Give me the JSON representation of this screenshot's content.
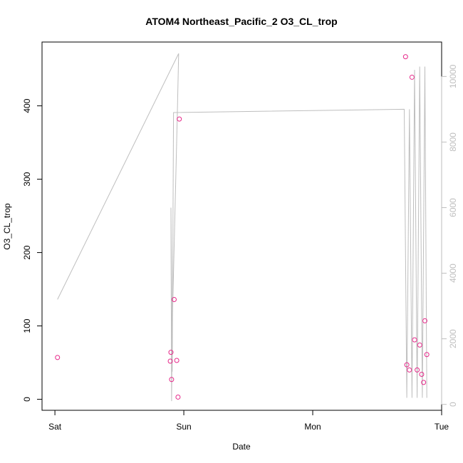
{
  "chart_data": {
    "type": "scatter",
    "title": "ATOM4 Northeast_Pacific_2 O3_CL_trop",
    "xlabel": "Date",
    "ylabel": "O3_CL_trop",
    "x_ticks": [
      {
        "label": "Sat",
        "value": 0
      },
      {
        "label": "Sun",
        "value": 1
      },
      {
        "label": "Mon",
        "value": 2
      },
      {
        "label": "Tue",
        "value": 3
      }
    ],
    "y_ticks": [
      0,
      100,
      200,
      300,
      400
    ],
    "y_right_ticks": [
      0,
      2000,
      4000,
      6000,
      8000,
      10000
    ],
    "xlim": [
      -0.1,
      3.0
    ],
    "ylim": [
      -15,
      487
    ],
    "y_right_lim": [
      -180,
      11050
    ],
    "series": [
      {
        "kind": "points",
        "axis": "left",
        "color": "#e7298a",
        "x": [
          0.02,
          0.895,
          0.9,
          0.905,
          0.925,
          0.945,
          0.955,
          0.965,
          2.72,
          2.73,
          2.75,
          2.77,
          2.79,
          2.81,
          2.83,
          2.845,
          2.86,
          2.87,
          2.885
        ],
        "y": [
          57,
          52,
          64,
          27,
          136,
          53,
          3,
          382,
          467,
          47,
          40,
          439,
          81,
          40,
          74,
          34,
          23,
          107,
          61
        ]
      },
      {
        "kind": "line",
        "axis": "right",
        "color": "#bebebe",
        "x": [
          0.02,
          0.96,
          0.95,
          0.91,
          0.905,
          0.9,
          0.91,
          0.92,
          2.71,
          2.73,
          2.75,
          2.77,
          2.79,
          2.81,
          2.83,
          2.85,
          2.87,
          2.885
        ],
        "y": [
          3200,
          10700,
          8900,
          2400,
          100,
          6000,
          1000,
          8900,
          9000,
          200,
          9000,
          200,
          10200,
          200,
          10300,
          200,
          10300,
          200
        ]
      }
    ]
  }
}
